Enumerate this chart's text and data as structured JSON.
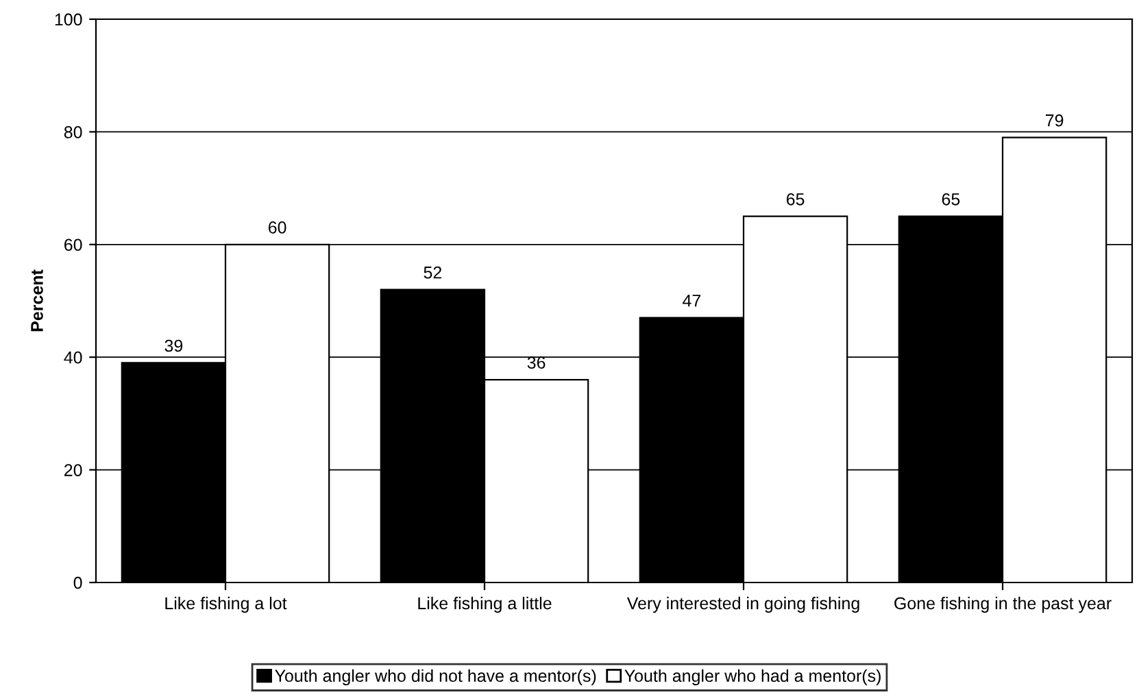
{
  "chart_data": {
    "type": "bar",
    "ylabel": "Percent",
    "categories": [
      "Like fishing a lot",
      "Like fishing a little",
      "Very interested in going fishing",
      "Gone fishing in the past year"
    ],
    "series": [
      {
        "name": "Youth angler who did not have a mentor(s)",
        "color": "#000000",
        "values": [
          39,
          52,
          47,
          65
        ]
      },
      {
        "name": "Youth angler who had a mentor(s)",
        "color": "#ffffff",
        "values": [
          60,
          36,
          65,
          79
        ]
      }
    ],
    "ylim": [
      0,
      100
    ],
    "yticks": [
      0,
      20,
      40,
      60,
      80,
      100
    ],
    "grid": "y",
    "legend": "bottom",
    "data_labels": true
  }
}
